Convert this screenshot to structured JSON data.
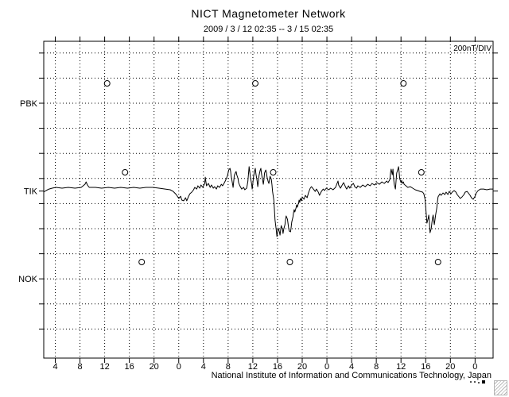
{
  "header": {
    "title": "NICT Magnetometer Network",
    "subtitle": "2009 / 3 / 12  02:35 --  3 / 15  02:35"
  },
  "footer": {
    "text": "National Institute of Information and Communications Technology, Japan"
  },
  "chart_data": {
    "type": "line",
    "title": "NICT Magnetometer Network",
    "subtitle": "2009 / 3 / 12  02:35 --  3 / 15  02:35",
    "scale_label": "200nT/DIV",
    "nt_per_div": 200,
    "grid": "dotted",
    "time_axis": {
      "start": "2009-03-12 02:35",
      "end": "2009-03-15 02:35",
      "span_hours": [
        2.1,
        74.9
      ],
      "tick_hours": [
        4,
        8,
        12,
        16,
        20,
        24,
        28,
        32,
        36,
        40,
        44,
        48,
        52,
        56,
        60,
        64,
        68,
        72
      ],
      "tick_labels": [
        "4",
        "8",
        "12",
        "16",
        "20",
        "0",
        "4",
        "8",
        "12",
        "16",
        "20",
        "0",
        "4",
        "8",
        "12",
        "16",
        "20",
        "0"
      ]
    },
    "stations": [
      {
        "label": "PBK",
        "row": 2
      },
      {
        "label": "TIK",
        "row": 5.5
      },
      {
        "label": "NOK",
        "row": 9
      }
    ],
    "h_gridline_rows": 12,
    "markers": [
      {
        "station": "PBK",
        "t": 12.4,
        "nT": 158
      },
      {
        "station": "PBK",
        "t": 36.4,
        "nT": 158
      },
      {
        "station": "PBK",
        "t": 60.4,
        "nT": 158
      },
      {
        "station": "TIK",
        "t": 15.3,
        "nT": 149
      },
      {
        "station": "TIK",
        "t": 39.3,
        "nT": 149
      },
      {
        "station": "TIK",
        "t": 63.3,
        "nT": 149
      },
      {
        "station": "NOK",
        "t": 18.0,
        "nT": 134
      },
      {
        "station": "NOK",
        "t": 42.0,
        "nT": 134
      },
      {
        "station": "NOK",
        "t": 66.0,
        "nT": 134
      }
    ],
    "series": [
      {
        "name": "TIK",
        "station": "TIK",
        "units": "nT",
        "points": [
          [
            2.1,
            -9
          ],
          [
            2.5,
            4
          ],
          [
            3.0,
            16
          ],
          [
            3.5,
            23
          ],
          [
            4.1,
            29
          ],
          [
            5.1,
            23
          ],
          [
            6.1,
            29
          ],
          [
            7.2,
            23
          ],
          [
            8.2,
            29
          ],
          [
            8.8,
            54
          ],
          [
            9.0,
            73
          ],
          [
            9.2,
            48
          ],
          [
            9.5,
            29
          ],
          [
            10.5,
            29
          ],
          [
            11.5,
            23
          ],
          [
            12.6,
            29
          ],
          [
            13.6,
            23
          ],
          [
            14.6,
            29
          ],
          [
            15.7,
            23
          ],
          [
            16.7,
            29
          ],
          [
            17.7,
            23
          ],
          [
            18.7,
            29
          ],
          [
            19.8,
            29
          ],
          [
            20.8,
            23
          ],
          [
            21.8,
            16
          ],
          [
            22.6,
            10
          ],
          [
            23.1,
            -3
          ],
          [
            23.6,
            -28
          ],
          [
            24.0,
            -59
          ],
          [
            24.3,
            -41
          ],
          [
            24.5,
            -72
          ],
          [
            24.8,
            -78
          ],
          [
            25.1,
            -53
          ],
          [
            25.3,
            -78
          ],
          [
            25.6,
            -41
          ],
          [
            25.8,
            -22
          ],
          [
            26.1,
            -9
          ],
          [
            26.4,
            10
          ],
          [
            26.6,
            29
          ],
          [
            26.9,
            16
          ],
          [
            27.1,
            42
          ],
          [
            27.4,
            23
          ],
          [
            27.6,
            48
          ],
          [
            27.9,
            29
          ],
          [
            28.2,
            61
          ],
          [
            28.3,
            111
          ],
          [
            28.4,
            73
          ],
          [
            28.5,
            42
          ],
          [
            28.8,
            61
          ],
          [
            29.1,
            29
          ],
          [
            29.3,
            48
          ],
          [
            29.6,
            23
          ],
          [
            29.8,
            35
          ],
          [
            30.1,
            16
          ],
          [
            30.3,
            42
          ],
          [
            30.6,
            29
          ],
          [
            30.9,
            54
          ],
          [
            31.1,
            42
          ],
          [
            31.4,
            67
          ],
          [
            31.6,
            86
          ],
          [
            31.9,
            124
          ],
          [
            32.1,
            168
          ],
          [
            32.3,
            181
          ],
          [
            32.4,
            156
          ],
          [
            32.5,
            118
          ],
          [
            32.7,
            61
          ],
          [
            32.8,
            29
          ],
          [
            32.9,
            73
          ],
          [
            33.0,
            124
          ],
          [
            33.2,
            149
          ],
          [
            33.3,
            156
          ],
          [
            33.4,
            130
          ],
          [
            33.6,
            99
          ],
          [
            33.7,
            67
          ],
          [
            33.9,
            42
          ],
          [
            34.2,
            16
          ],
          [
            34.5,
            29
          ],
          [
            34.7,
            10
          ],
          [
            35.0,
            23
          ],
          [
            35.1,
            48
          ],
          [
            35.2,
            80
          ],
          [
            35.4,
            194
          ],
          [
            35.5,
            156
          ],
          [
            35.6,
            111
          ],
          [
            35.8,
            61
          ],
          [
            35.9,
            16
          ],
          [
            36.0,
            61
          ],
          [
            36.1,
            111
          ],
          [
            36.3,
            162
          ],
          [
            36.4,
            181
          ],
          [
            36.5,
            137
          ],
          [
            36.7,
            80
          ],
          [
            36.8,
            35
          ],
          [
            36.9,
            73
          ],
          [
            37.0,
            124
          ],
          [
            37.2,
            168
          ],
          [
            37.3,
            181
          ],
          [
            37.4,
            137
          ],
          [
            37.6,
            86
          ],
          [
            37.7,
            54
          ],
          [
            37.8,
            92
          ],
          [
            37.9,
            143
          ],
          [
            38.1,
            168
          ],
          [
            38.2,
            149
          ],
          [
            38.3,
            111
          ],
          [
            38.5,
            73
          ],
          [
            38.6,
            61
          ],
          [
            38.7,
            92
          ],
          [
            38.8,
            118
          ],
          [
            39.0,
            92
          ],
          [
            39.1,
            48
          ],
          [
            39.2,
            -3
          ],
          [
            39.4,
            -72
          ],
          [
            39.5,
            -154
          ],
          [
            39.6,
            -230
          ],
          [
            39.8,
            -313
          ],
          [
            39.9,
            -363
          ],
          [
            40.0,
            -332
          ],
          [
            40.1,
            -294
          ],
          [
            40.3,
            -325
          ],
          [
            40.4,
            -351
          ],
          [
            40.5,
            -313
          ],
          [
            40.6,
            -275
          ],
          [
            40.8,
            -306
          ],
          [
            40.9,
            -338
          ],
          [
            41.0,
            -306
          ],
          [
            41.2,
            -268
          ],
          [
            41.3,
            -230
          ],
          [
            41.4,
            -199
          ],
          [
            41.6,
            -224
          ],
          [
            41.7,
            -256
          ],
          [
            41.8,
            -294
          ],
          [
            41.9,
            -319
          ],
          [
            42.1,
            -325
          ],
          [
            42.2,
            -294
          ],
          [
            42.3,
            -249
          ],
          [
            42.5,
            -205
          ],
          [
            42.6,
            -173
          ],
          [
            42.7,
            -148
          ],
          [
            42.8,
            -167
          ],
          [
            43.0,
            -135
          ],
          [
            43.1,
            -110
          ],
          [
            43.2,
            -129
          ],
          [
            43.4,
            -97
          ],
          [
            43.5,
            -72
          ],
          [
            43.6,
            -91
          ],
          [
            43.7,
            -59
          ],
          [
            43.9,
            -78
          ],
          [
            44.0,
            -47
          ],
          [
            44.3,
            -66
          ],
          [
            44.5,
            -34
          ],
          [
            44.8,
            -53
          ],
          [
            45.0,
            -15
          ],
          [
            45.3,
            23
          ],
          [
            45.5,
            35
          ],
          [
            45.8,
            16
          ],
          [
            46.1,
            -3
          ],
          [
            46.3,
            16
          ],
          [
            46.6,
            -9
          ],
          [
            46.8,
            -34
          ],
          [
            47.1,
            -3
          ],
          [
            47.4,
            16
          ],
          [
            47.6,
            4
          ],
          [
            47.9,
            23
          ],
          [
            48.3,
            10
          ],
          [
            48.6,
            23
          ],
          [
            49.0,
            10
          ],
          [
            49.4,
            29
          ],
          [
            49.8,
            80
          ],
          [
            49.9,
            48
          ],
          [
            50.2,
            23
          ],
          [
            50.4,
            42
          ],
          [
            50.7,
            67
          ],
          [
            51.0,
            35
          ],
          [
            51.2,
            16
          ],
          [
            51.5,
            42
          ],
          [
            51.7,
            23
          ],
          [
            52.0,
            48
          ],
          [
            52.3,
            61
          ],
          [
            52.5,
            35
          ],
          [
            52.8,
            23
          ],
          [
            53.0,
            42
          ],
          [
            53.4,
            29
          ],
          [
            53.8,
            48
          ],
          [
            54.2,
            35
          ],
          [
            54.6,
            54
          ],
          [
            55.0,
            42
          ],
          [
            55.3,
            61
          ],
          [
            55.7,
            48
          ],
          [
            56.1,
            67
          ],
          [
            56.5,
            54
          ],
          [
            56.9,
            73
          ],
          [
            57.3,
            61
          ],
          [
            57.7,
            80
          ],
          [
            57.9,
            67
          ],
          [
            58.2,
            92
          ],
          [
            58.3,
            143
          ],
          [
            58.4,
            175
          ],
          [
            58.6,
            130
          ],
          [
            58.7,
            175
          ],
          [
            58.8,
            99
          ],
          [
            58.9,
            54
          ],
          [
            59.1,
            16
          ],
          [
            59.2,
            80
          ],
          [
            59.3,
            143
          ],
          [
            59.5,
            175
          ],
          [
            59.6,
            194
          ],
          [
            59.7,
            149
          ],
          [
            59.8,
            99
          ],
          [
            60.0,
            67
          ],
          [
            60.1,
            86
          ],
          [
            60.2,
            61
          ],
          [
            60.4,
            73
          ],
          [
            60.5,
            54
          ],
          [
            60.8,
            42
          ],
          [
            61.1,
            29
          ],
          [
            61.5,
            35
          ],
          [
            61.9,
            23
          ],
          [
            62.3,
            10
          ],
          [
            62.7,
            4
          ],
          [
            63.1,
            -3
          ],
          [
            63.5,
            -9
          ],
          [
            63.7,
            -22
          ],
          [
            63.9,
            -66
          ],
          [
            64.0,
            -129
          ],
          [
            64.1,
            -192
          ],
          [
            64.2,
            -256
          ],
          [
            64.4,
            -218
          ],
          [
            64.5,
            -192
          ],
          [
            64.6,
            -243
          ],
          [
            64.7,
            -332
          ],
          [
            64.9,
            -300
          ],
          [
            65.0,
            -256
          ],
          [
            65.1,
            -218
          ],
          [
            65.2,
            -192
          ],
          [
            65.4,
            -268
          ],
          [
            65.5,
            -230
          ],
          [
            65.6,
            -192
          ],
          [
            65.8,
            -135
          ],
          [
            65.9,
            -85
          ],
          [
            66.0,
            -47
          ],
          [
            66.3,
            -22
          ],
          [
            66.5,
            -34
          ],
          [
            66.8,
            -15
          ],
          [
            67.1,
            -28
          ],
          [
            67.3,
            -9
          ],
          [
            67.6,
            -28
          ],
          [
            67.8,
            -3
          ],
          [
            68.1,
            -22
          ],
          [
            68.3,
            -9
          ],
          [
            68.6,
            4
          ],
          [
            68.9,
            -9
          ],
          [
            69.1,
            -28
          ],
          [
            69.4,
            -47
          ],
          [
            69.6,
            -59
          ],
          [
            69.9,
            -47
          ],
          [
            70.2,
            -28
          ],
          [
            70.4,
            -9
          ],
          [
            70.7,
            -3
          ],
          [
            70.9,
            -15
          ],
          [
            71.2,
            -34
          ],
          [
            71.4,
            -53
          ],
          [
            71.7,
            -66
          ],
          [
            72.0,
            -41
          ],
          [
            72.2,
            -15
          ],
          [
            72.5,
            4
          ],
          [
            72.9,
            16
          ],
          [
            73.4,
            16
          ],
          [
            73.9,
            10
          ],
          [
            74.4,
            16
          ],
          [
            74.9,
            16
          ]
        ]
      }
    ]
  }
}
